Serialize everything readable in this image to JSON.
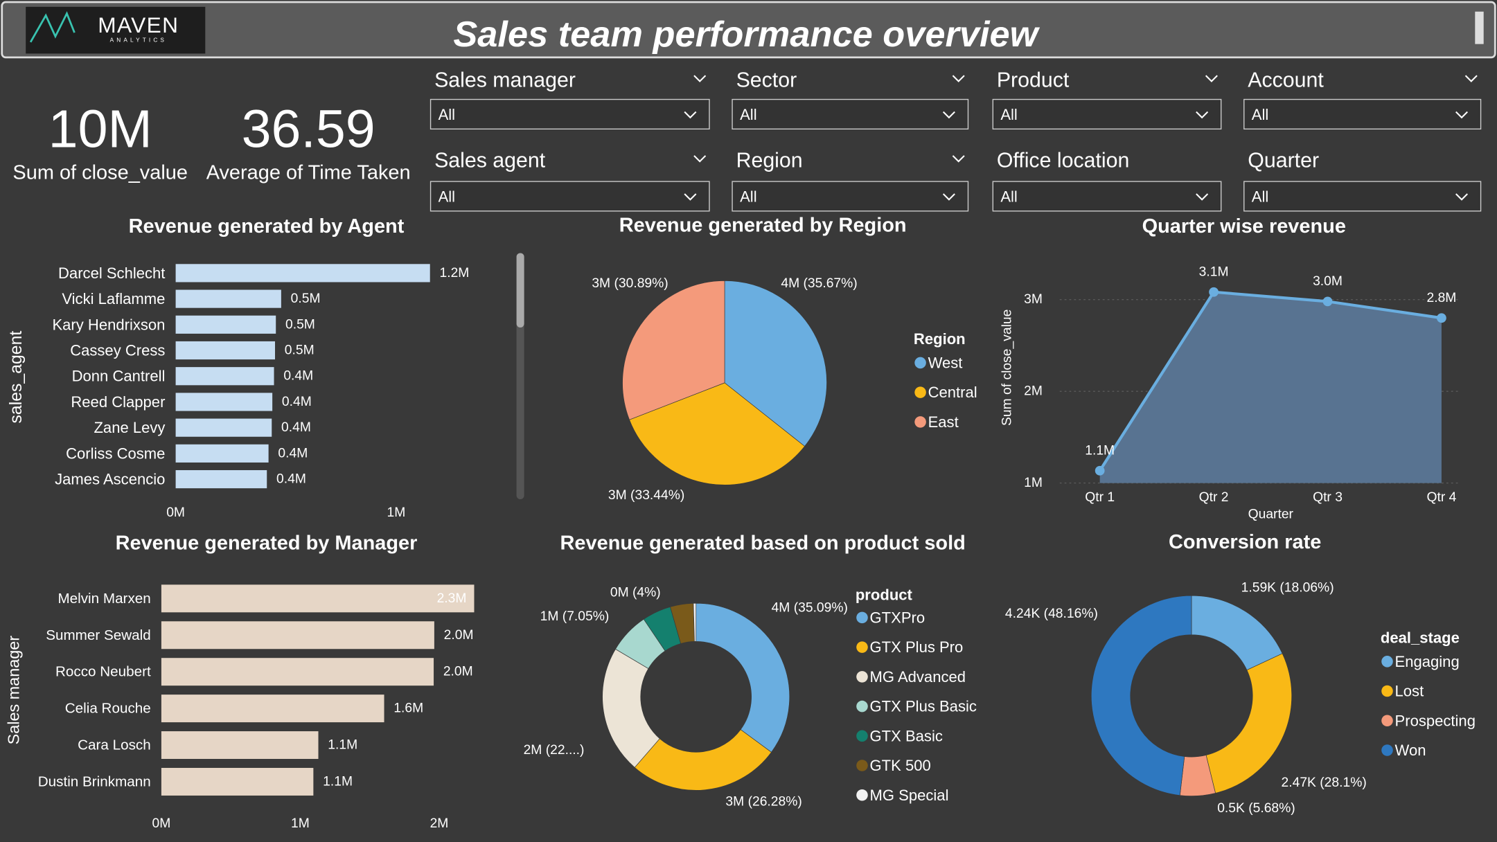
{
  "header": {
    "logo": "MAVEN",
    "logo_sub": "ANALYTICS",
    "title": "Sales team performance overview"
  },
  "kpis": [
    {
      "value": "10M",
      "label": "Sum of close_value"
    },
    {
      "value": "36.59",
      "label": "Average of Time Taken"
    }
  ],
  "filters": [
    {
      "label": "Sales manager",
      "value": "All"
    },
    {
      "label": "Sector",
      "value": "All"
    },
    {
      "label": "Product",
      "value": "All"
    },
    {
      "label": "Account",
      "value": "All"
    },
    {
      "label": "Sales agent",
      "value": "All"
    },
    {
      "label": "Region",
      "value": "All"
    },
    {
      "label": "Office location",
      "value": "All"
    },
    {
      "label": "Quarter",
      "value": "All"
    }
  ],
  "chart_data": [
    {
      "type": "bar",
      "orientation": "horizontal",
      "title": "Revenue generated by Agent",
      "ylabel": "sales_agent",
      "categories": [
        "Darcel Schlecht",
        "Vicki Laflamme",
        "Kary Hendrixson",
        "Cassey Cress",
        "Donn Cantrell",
        "Reed Clapper",
        "Zane Levy",
        "Corliss Cosme",
        "James Ascencio"
      ],
      "values": [
        1153214,
        478396,
        454298,
        450489,
        445860,
        438336,
        435589,
        421036,
        413533
      ],
      "value_labels": [
        "1.2M",
        "0.5M",
        "0.5M",
        "0.5M",
        "0.4M",
        "0.4M",
        "0.4M",
        "0.4M",
        "0.4M"
      ],
      "color": "#c6ddf2",
      "xlim": [
        0,
        1400000
      ],
      "xticks": [
        {
          "value": 0,
          "label": "0M"
        },
        {
          "value": 1000000,
          "label": "1M"
        }
      ]
    },
    {
      "type": "pie",
      "title": "Revenue generated by Region",
      "legend_title": "Region",
      "categories": [
        "West",
        "Central",
        "East"
      ],
      "values": [
        35.67,
        33.44,
        30.89
      ],
      "value_labels": [
        "4M (35.67%)",
        "3M (33.44%)",
        "3M (30.89%)"
      ],
      "colors": [
        "#6aaee0",
        "#f9b916",
        "#f49a7b"
      ]
    },
    {
      "type": "area",
      "title": "Quarter wise revenue",
      "xlabel": "Quarter",
      "ylabel": "Sum of close_value",
      "categories": [
        "Qtr 1",
        "Qtr 2",
        "Qtr 3",
        "Qtr 4"
      ],
      "values": [
        1135000,
        3083000,
        2980000,
        2800000
      ],
      "value_labels": [
        "1.1M",
        "3.1M",
        "3.0M",
        "2.8M"
      ],
      "color": "#6aaee0",
      "fill": "#587391",
      "ylim": [
        1000000,
        3300000
      ],
      "yticks": [
        {
          "value": 1000000,
          "label": "1M"
        },
        {
          "value": 2000000,
          "label": "2M"
        },
        {
          "value": 3000000,
          "label": "3M"
        }
      ],
      "grid": true
    },
    {
      "type": "bar",
      "orientation": "horizontal",
      "title": "Revenue generated by Manager",
      "ylabel": "Sales manager",
      "categories": [
        "Melvin Marxen",
        "Summer Sewald",
        "Rocco Neubert",
        "Celia Rouche",
        "Cara Losch",
        "Dustin Brinkmann"
      ],
      "values": [
        2251930,
        1964750,
        1960545,
        1603897,
        1130049,
        1094363
      ],
      "value_labels": [
        "2.3M",
        "2.0M",
        "2.0M",
        "1.6M",
        "1.1M",
        "1.1M"
      ],
      "color": "#e6d6c6",
      "xlim": [
        0,
        2300000
      ],
      "xticks": [
        {
          "value": 0,
          "label": "0M"
        },
        {
          "value": 1000000,
          "label": "1M"
        },
        {
          "value": 2000000,
          "label": "2M"
        }
      ]
    },
    {
      "type": "donut",
      "title": "Revenue generated based on product sold",
      "legend_title": "product",
      "categories": [
        "GTXPro",
        "GTX Plus Pro",
        "MG Advanced",
        "GTX Plus Basic",
        "GTX Basic",
        "GTK 500",
        "MG Special"
      ],
      "values": [
        35.09,
        26.28,
        22.15,
        7.05,
        4.99,
        4.0,
        0.44
      ],
      "value_labels": [
        "4M (35.09%)",
        "3M (26.28%)",
        "2M (22....)",
        "1M (7.05%)",
        null,
        "0M (4%)",
        null
      ],
      "colors": [
        "#6aaee0",
        "#f9b916",
        "#ece4d6",
        "#a8d8cf",
        "#14806e",
        "#7a5a1a",
        "#f2f2f2"
      ]
    },
    {
      "type": "donut",
      "title": "Conversion rate",
      "legend_title": "deal_stage",
      "categories": [
        "Engaging",
        "Lost",
        "Prospecting",
        "Won"
      ],
      "values": [
        1589,
        2473,
        500,
        4238
      ],
      "value_labels": [
        "1.59K (18.06%)",
        "2.47K (28.1%)",
        "0.5K (5.68%)",
        "4.24K (48.16%)"
      ],
      "colors": [
        "#6aaee0",
        "#f9b916",
        "#f49a7b",
        "#2e78c0"
      ]
    }
  ]
}
